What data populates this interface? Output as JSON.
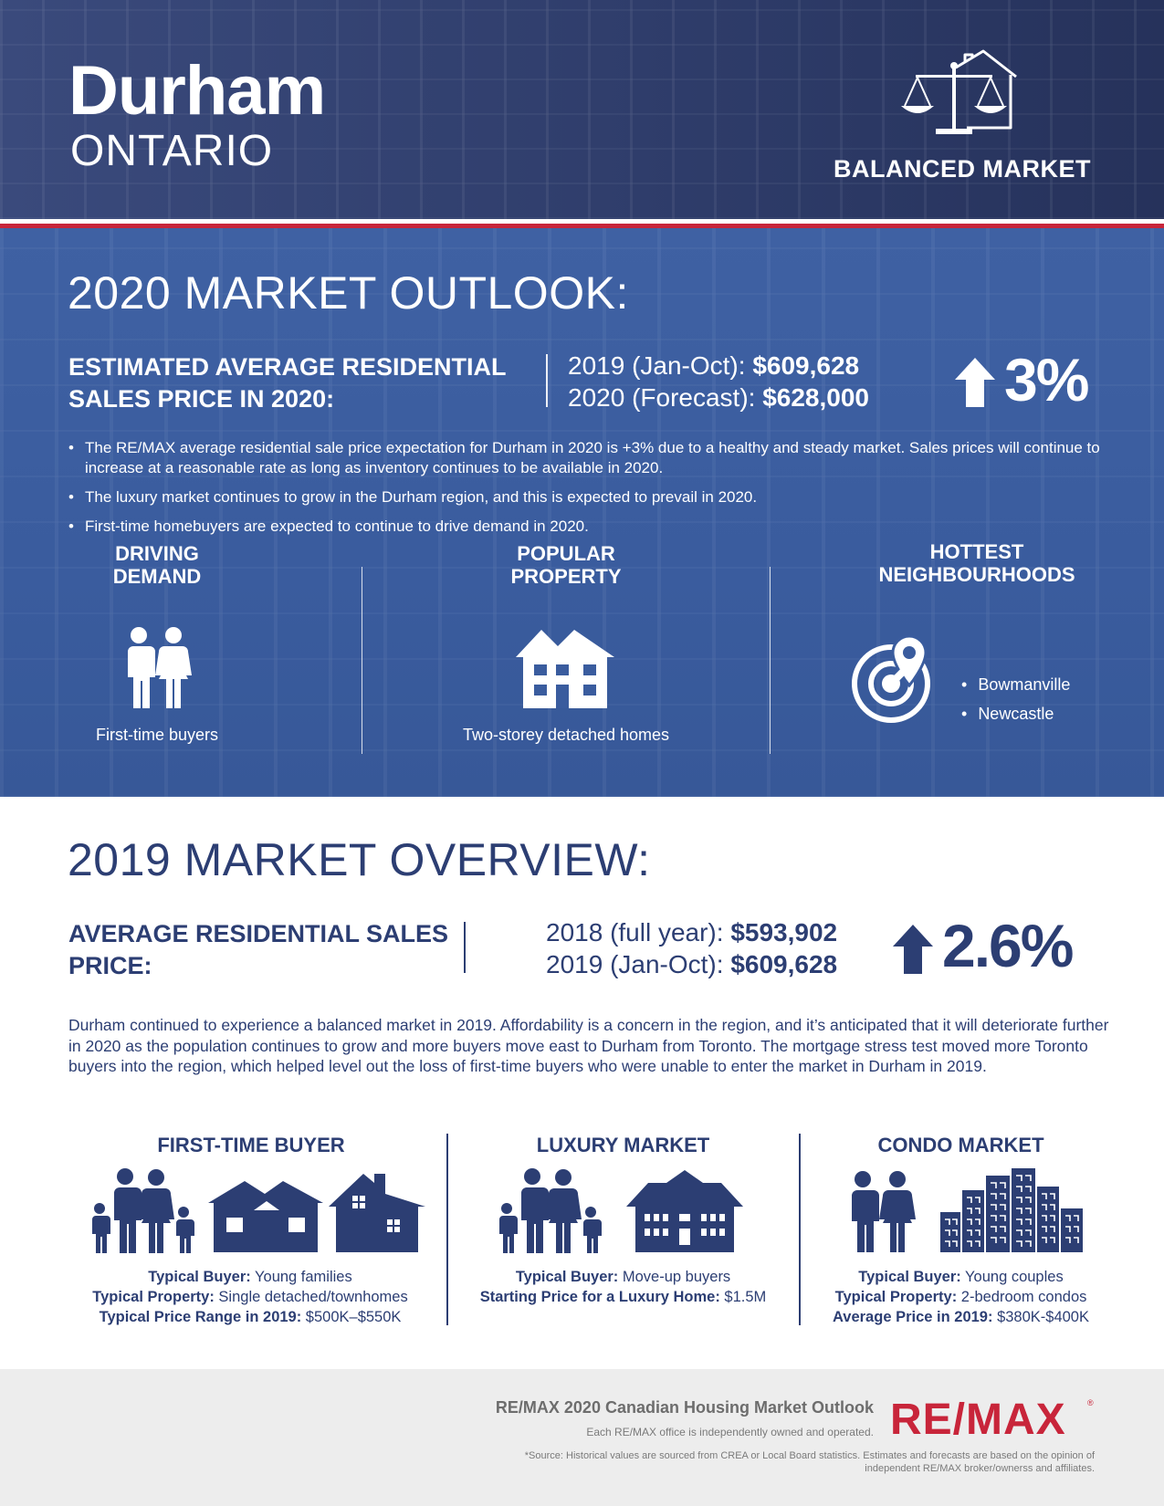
{
  "header": {
    "city": "Durham",
    "province": "ONTARIO",
    "market_status": "BALANCED MARKET",
    "market_icon": "scales-house-icon"
  },
  "outlook": {
    "title": "2020 MARKET OUTLOOK:",
    "price_label": "ESTIMATED AVERAGE RESIDENTIAL SALES PRICE IN 2020:",
    "prior_label": "2019 (Jan-Oct): ",
    "prior_value": "$609,628",
    "forecast_label": "2020 (Forecast): ",
    "forecast_value": "$628,000",
    "change": "3%",
    "bullets": [
      "The RE/MAX average residential sale price expectation for Durham in 2020 is +3% due to a healthy and steady market. Sales prices will continue to increase at a reasonable rate as long as inventory continues to be available in 2020.",
      "The luxury market continues to grow in the Durham region, and this is expected to prevail in 2020.",
      "First-time homebuyers are expected to continue to drive demand in 2020."
    ],
    "driving_demand": {
      "title_line1": "DRIVING",
      "title_line2": "DEMAND",
      "caption": "First-time buyers"
    },
    "popular_property": {
      "title_line1": "POPULAR",
      "title_line2": "PROPERTY",
      "caption": "Two-storey detached homes"
    },
    "hottest": {
      "title_line1": "HOTTEST",
      "title_line2": "NEIGHBOURHOODS",
      "items": [
        "Bowmanville",
        "Newcastle"
      ]
    }
  },
  "overview": {
    "title": "2019 MARKET OVERVIEW:",
    "price_label": "AVERAGE RESIDENTIAL SALES PRICE:",
    "prior_label": "2018 (full year): ",
    "prior_value": "$593,902",
    "current_label": "2019 (Jan-Oct): ",
    "current_value": "$609,628",
    "change": "2.6%",
    "paragraph": "Durham continued to experience a balanced market in 2019. Affordability is a concern in the region, and it’s anticipated that it will deteriorate further in 2020 as the population continues to grow and more buyers move east to Durham from Toronto. The mortgage stress test moved more Toronto buyers into the region, which helped level out the loss of first-time buyers who were unable to enter the market in Durham in 2019.",
    "segments": {
      "first_time": {
        "title": "FIRST-TIME BUYER",
        "l1_label": "Typical Buyer:",
        "l1_value": " Young families",
        "l2_label": "Typical Property:",
        "l2_value": " Single detached/townhomes",
        "l3_label": "Typical Price Range in 2019:",
        "l3_value": " $500K–$550K"
      },
      "luxury": {
        "title": "LUXURY MARKET",
        "l1_label": "Typical Buyer:",
        "l1_value": " Move-up buyers",
        "l2_label": "Starting Price for a Luxury Home:",
        "l2_value": " $1.5M"
      },
      "condo": {
        "title": "CONDO MARKET",
        "l1_label": "Typical Buyer:",
        "l1_value": " Young couples",
        "l2_label": "Typical Property:",
        "l2_value": " 2-bedroom condos",
        "l3_label": "Average Price in 2019:",
        "l3_value": " $380K-$400K"
      }
    }
  },
  "footer": {
    "report_title": "RE/MAX 2020 Canadian Housing Market Outlook",
    "independent": "Each RE/MAX office is independently owned and operated.",
    "source": "*Source: Historical values are sourced from CREA or Local Board statistics. Estimates and forecasts are based on the opinion of independent RE/MAX broker/ownerss and affiliates.",
    "logo_text": "RE/MAX",
    "logo_reg": "®"
  },
  "colors": {
    "navy": "#2c3e73",
    "header_bg": "#2f3d6b",
    "outlook_bg": "#3a5c9e",
    "accent_red": "#c8253a",
    "footer_bg": "#ededed"
  }
}
